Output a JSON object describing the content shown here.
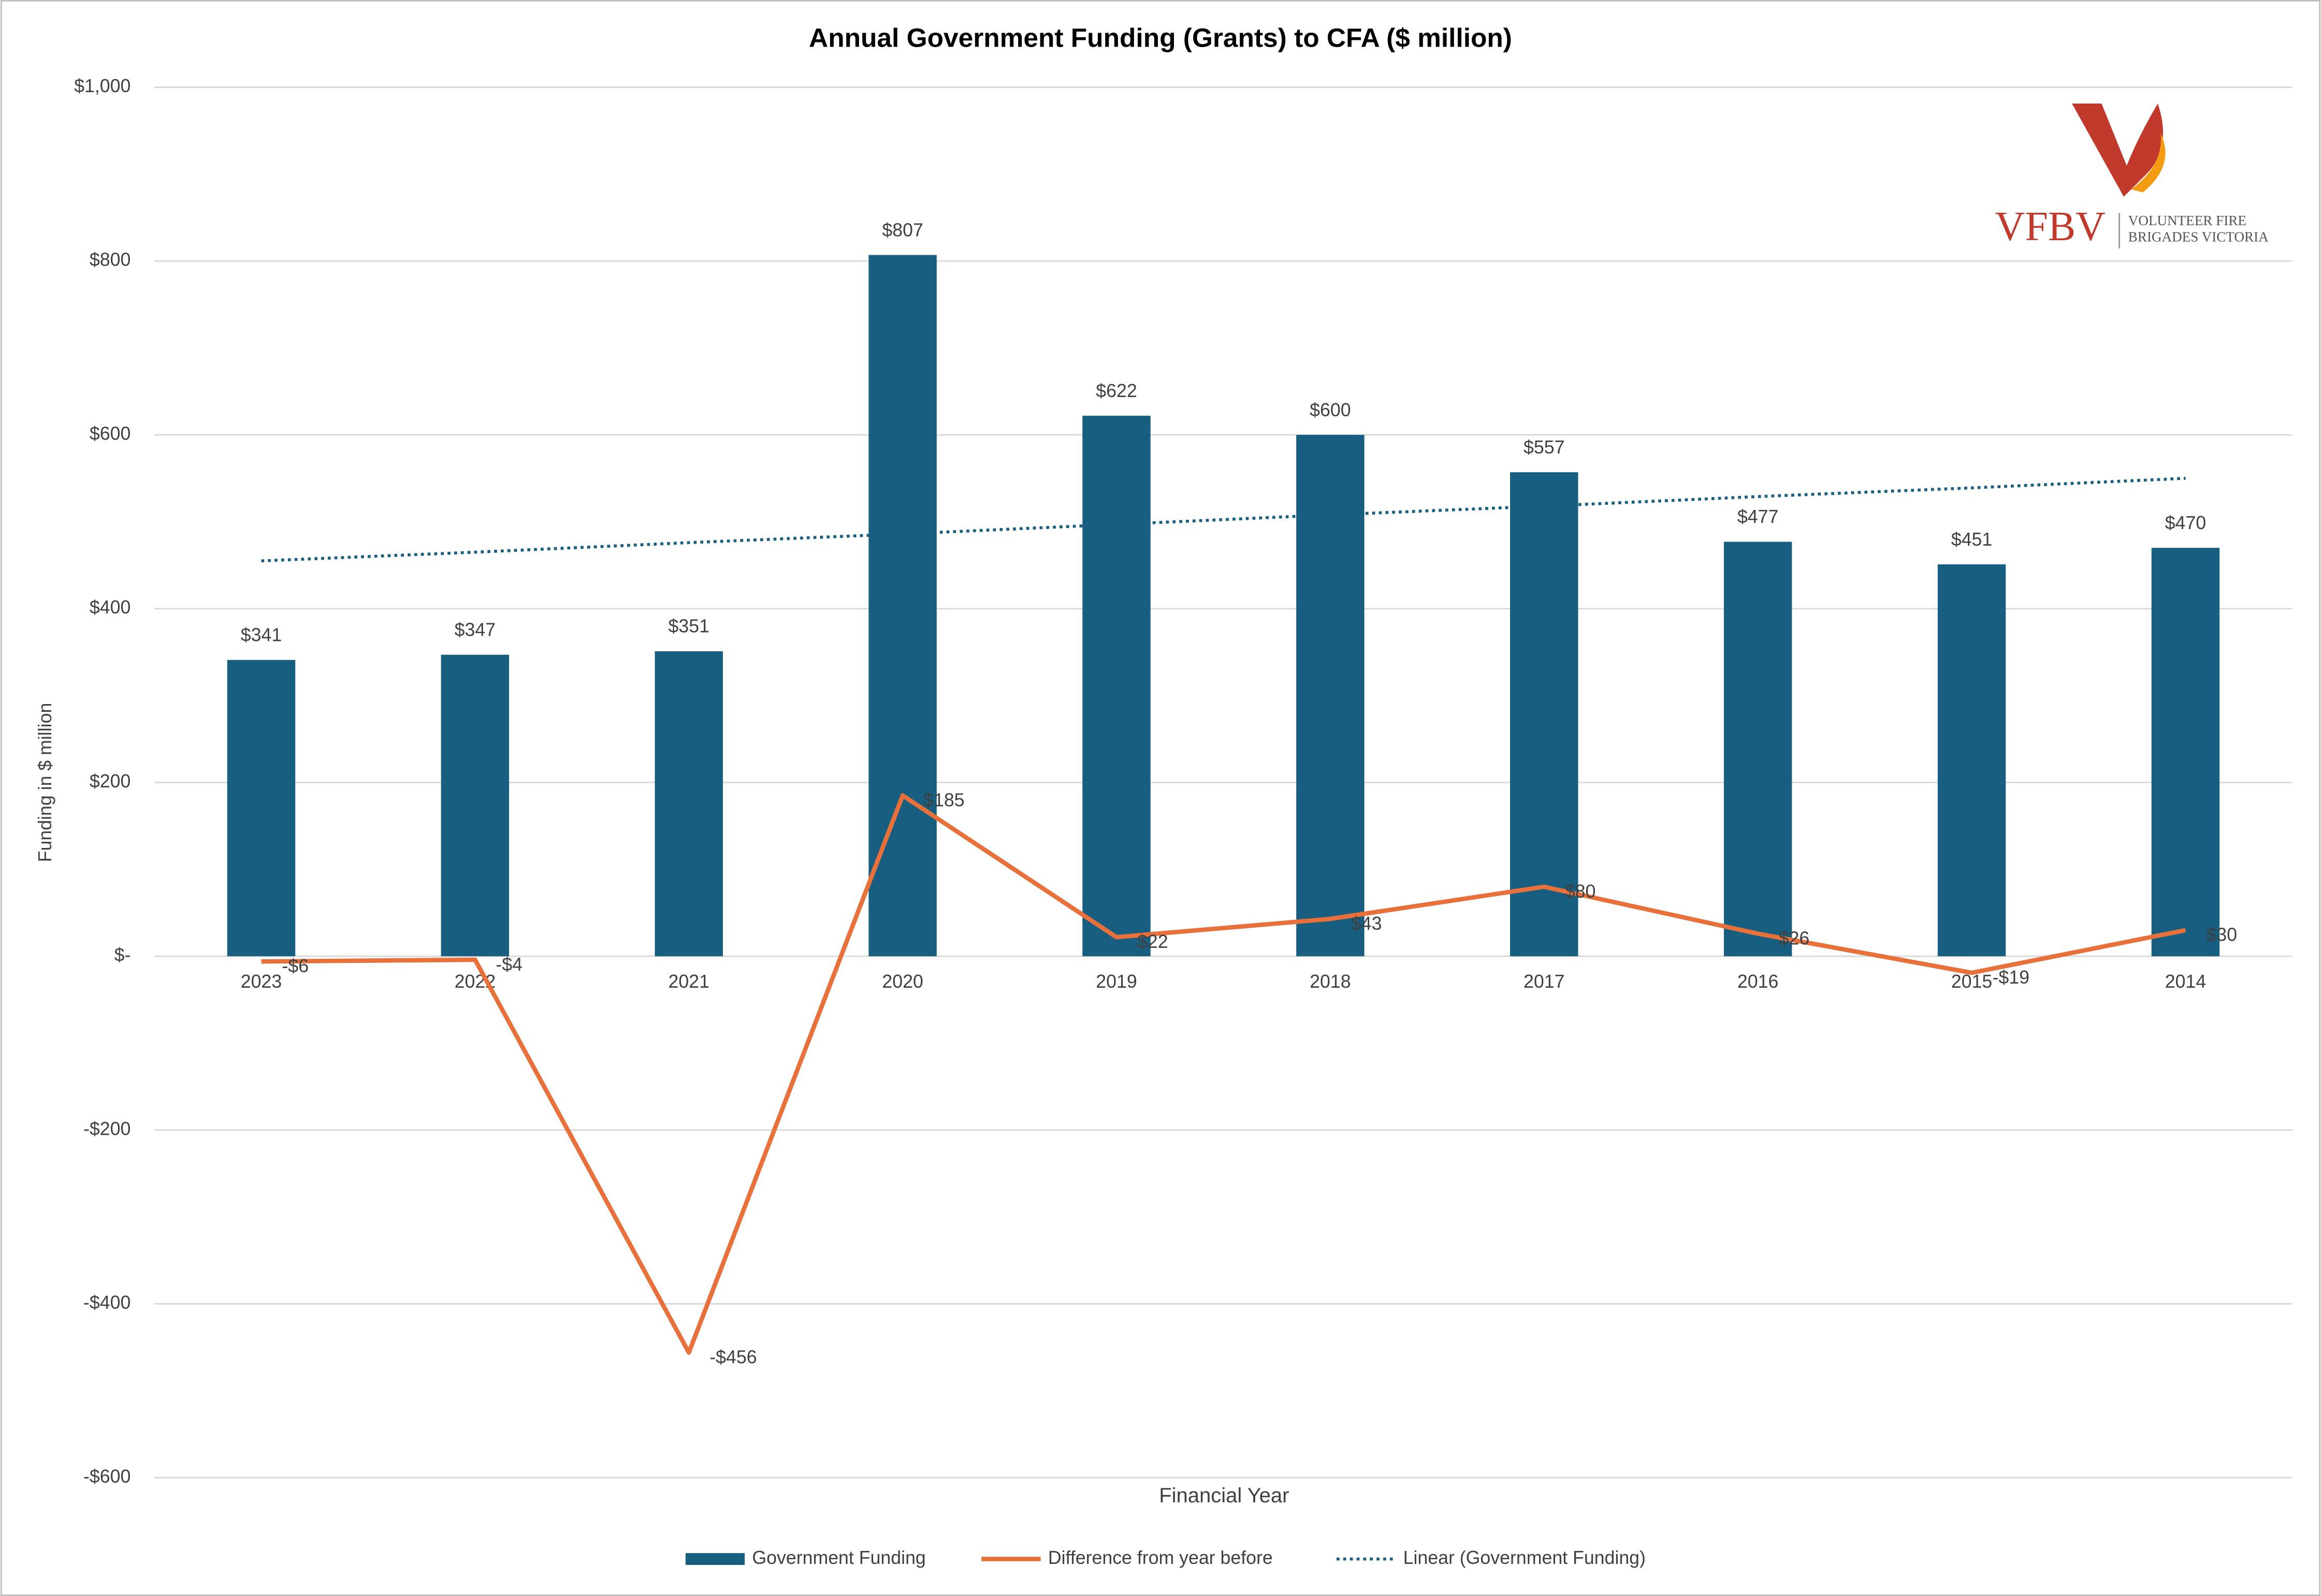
{
  "chart_data": {
    "type": "combo",
    "title": "Annual Government Funding (Grants) to CFA ($ million)",
    "x_label": "Financial Year",
    "y_label": "Funding in $ million",
    "categories": [
      "2023",
      "2022",
      "2021",
      "2020",
      "2019",
      "2018",
      "2017",
      "2016",
      "2015",
      "2014"
    ],
    "series": [
      {
        "name": "Government Funding",
        "type": "bar",
        "color": "#175e80",
        "values": [
          341,
          347,
          351,
          807,
          622,
          600,
          557,
          477,
          451,
          470
        ],
        "value_labels": [
          "$341",
          "$347",
          "$351",
          "$807",
          "$622",
          "$600",
          "$557",
          "$477",
          "$451",
          "$470"
        ]
      },
      {
        "name": "Difference from year before",
        "type": "line",
        "color": "#e8703a",
        "values": [
          -6,
          -4,
          -456,
          185,
          22,
          43,
          80,
          26,
          -19,
          30
        ],
        "value_labels": [
          "-$6",
          "-$4",
          "-$456",
          "$185",
          "$22",
          "$43",
          "$80",
          "$26",
          "-$19",
          "$30"
        ]
      },
      {
        "name": "Linear (Government Funding)",
        "type": "line",
        "style": "dotted",
        "color": "#175e80",
        "values": [
          455,
          465,
          476,
          486,
          497,
          508,
          518,
          529,
          539,
          550
        ]
      }
    ],
    "ylim": [
      -600,
      1000
    ],
    "yticks": [
      {
        "value": -600,
        "label": "-$600"
      },
      {
        "value": -400,
        "label": "-$400"
      },
      {
        "value": -200,
        "label": "-$200"
      },
      {
        "value": 0,
        "label": "$-"
      },
      {
        "value": 200,
        "label": "$200"
      },
      {
        "value": 400,
        "label": "$400"
      },
      {
        "value": 600,
        "label": "$600"
      },
      {
        "value": 800,
        "label": "$800"
      },
      {
        "value": 1000,
        "label": "$1,000"
      }
    ],
    "grid": true,
    "legend": "bottom",
    "logo": {
      "mark": "VFBV",
      "line1": "VOLUNTEER FIRE",
      "line2": "BRIGADES VICTORIA"
    }
  }
}
